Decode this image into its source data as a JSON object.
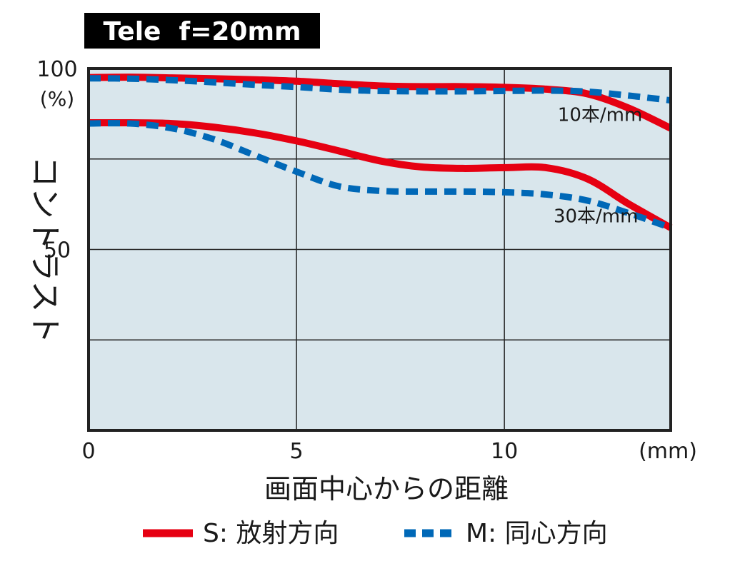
{
  "chart_data": {
    "type": "line",
    "title": "Tele  f=20mm",
    "ylabel": "コントラスト",
    "yunit": "(%)",
    "xlabel": "画面中心からの距離",
    "xunit": "(mm)",
    "xlim": [
      0,
      14
    ],
    "ylim": [
      0,
      100
    ],
    "x_ticks": [
      0,
      5,
      10
    ],
    "y_ticks": [
      50,
      100
    ],
    "grid": true,
    "legend_position": "bottom",
    "legend": {
      "S": "S: 放射方向",
      "M": "M: 同心方向"
    },
    "colors": {
      "S": "#e60012",
      "M": "#0068b7",
      "plot_bg": "#d9e6ec"
    },
    "series": [
      {
        "group": "10本/mm",
        "kind": "S",
        "x": [
          0,
          1,
          2,
          3,
          4,
          5,
          6,
          7,
          8,
          9,
          10,
          11,
          12,
          13,
          14
        ],
        "y": [
          97.5,
          97.6,
          97.4,
          97.2,
          96.9,
          96.5,
          95.8,
          95.2,
          95.0,
          95.0,
          94.8,
          94.3,
          93.0,
          89.0,
          83.5
        ]
      },
      {
        "group": "10本/mm",
        "kind": "M",
        "x": [
          0,
          1,
          2,
          3,
          4,
          5,
          6,
          7,
          8,
          9,
          10,
          11,
          12,
          13,
          14
        ],
        "y": [
          97.3,
          97.2,
          96.8,
          96.2,
          95.5,
          94.9,
          94.2,
          93.8,
          93.7,
          93.7,
          93.8,
          93.9,
          93.6,
          92.5,
          91.2
        ]
      },
      {
        "group": "30本/mm",
        "kind": "S",
        "x": [
          0,
          1,
          2,
          3,
          4,
          5,
          6,
          7,
          8,
          9,
          10,
          11,
          12,
          13,
          14
        ],
        "y": [
          85.0,
          85.0,
          84.8,
          83.8,
          82.2,
          80.0,
          77.3,
          74.5,
          72.8,
          72.4,
          72.6,
          72.6,
          69.5,
          62.5,
          56.0
        ]
      },
      {
        "group": "30本/mm",
        "kind": "M",
        "x": [
          0,
          1,
          2,
          3,
          4,
          5,
          6,
          7,
          8,
          9,
          10,
          11,
          12,
          13,
          14
        ],
        "y": [
          84.8,
          84.8,
          83.5,
          80.5,
          76.0,
          71.5,
          67.5,
          66.2,
          66.0,
          66.0,
          65.8,
          65.2,
          63.5,
          60.0,
          56.0
        ]
      }
    ],
    "annotations": [
      {
        "text": "10本/mm",
        "x": 12.3,
        "y": 85.5
      },
      {
        "text": "30本/mm",
        "x": 12.2,
        "y": 57.5
      }
    ]
  }
}
